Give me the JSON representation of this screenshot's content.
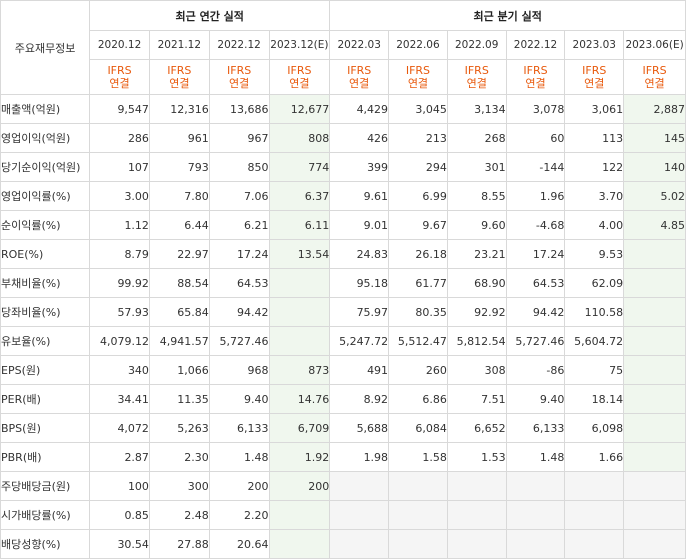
{
  "header": {
    "row_label": "주요재무정보",
    "annual_title": "최근 연간 실적",
    "quarter_title": "최근 분기 실적",
    "periods": [
      "2020.12",
      "2021.12",
      "2022.12",
      "2023.12(E)",
      "2022.03",
      "2022.06",
      "2022.09",
      "2022.12",
      "2023.03",
      "2023.06(E)"
    ],
    "basis": "IFRS",
    "basis_sub": "연결"
  },
  "rows": [
    {
      "label": "매출액(억원)",
      "values": [
        "9,547",
        "12,316",
        "13,686",
        "12,677",
        "4,429",
        "3,045",
        "3,134",
        "3,078",
        "3,061",
        "2,887"
      ],
      "neg": []
    },
    {
      "label": "영업이익(억원)",
      "values": [
        "286",
        "961",
        "967",
        "808",
        "426",
        "213",
        "268",
        "60",
        "113",
        "145"
      ],
      "neg": []
    },
    {
      "label": "당기순이익(억원)",
      "values": [
        "107",
        "793",
        "850",
        "774",
        "399",
        "294",
        "301",
        "-144",
        "122",
        "140"
      ],
      "neg": [
        7
      ]
    },
    {
      "label": "영업이익률(%)",
      "values": [
        "3.00",
        "7.80",
        "7.06",
        "6.37",
        "9.61",
        "6.99",
        "8.55",
        "1.96",
        "3.70",
        "5.02"
      ],
      "neg": []
    },
    {
      "label": "순이익률(%)",
      "values": [
        "1.12",
        "6.44",
        "6.21",
        "6.11",
        "9.01",
        "9.67",
        "9.60",
        "-4.68",
        "4.00",
        "4.85"
      ],
      "neg": [
        7
      ]
    },
    {
      "label": "ROE(%)",
      "values": [
        "8.79",
        "22.97",
        "17.24",
        "13.54",
        "24.83",
        "26.18",
        "23.21",
        "17.24",
        "9.53",
        ""
      ],
      "neg": []
    },
    {
      "label": "부채비율(%)",
      "values": [
        "99.92",
        "88.54",
        "64.53",
        "",
        "95.18",
        "61.77",
        "68.90",
        "64.53",
        "62.09",
        ""
      ],
      "neg": []
    },
    {
      "label": "당좌비율(%)",
      "values": [
        "57.93",
        "65.84",
        "94.42",
        "",
        "75.97",
        "80.35",
        "92.92",
        "94.42",
        "110.58",
        ""
      ],
      "neg": []
    },
    {
      "label": "유보율(%)",
      "values": [
        "4,079.12",
        "4,941.57",
        "5,727.46",
        "",
        "5,247.72",
        "5,512.47",
        "5,812.54",
        "5,727.46",
        "5,604.72",
        ""
      ],
      "neg": []
    },
    {
      "label": "EPS(원)",
      "values": [
        "340",
        "1,066",
        "968",
        "873",
        "491",
        "260",
        "308",
        "-86",
        "75",
        ""
      ],
      "neg": [
        7
      ]
    },
    {
      "label": "PER(배)",
      "values": [
        "34.41",
        "11.35",
        "9.40",
        "14.76",
        "8.92",
        "6.86",
        "7.51",
        "9.40",
        "18.14",
        ""
      ],
      "neg": []
    },
    {
      "label": "BPS(원)",
      "values": [
        "4,072",
        "5,263",
        "6,133",
        "6,709",
        "5,688",
        "6,084",
        "6,652",
        "6,133",
        "6,098",
        ""
      ],
      "neg": []
    },
    {
      "label": "PBR(배)",
      "values": [
        "2.87",
        "2.30",
        "1.48",
        "1.92",
        "1.98",
        "1.58",
        "1.53",
        "1.48",
        "1.66",
        ""
      ],
      "neg": []
    },
    {
      "label": "주당배당금(원)",
      "values": [
        "100",
        "300",
        "200",
        "200",
        "",
        "",
        "",
        "",
        "",
        ""
      ],
      "neg": [],
      "gray_quarters": true
    },
    {
      "label": "시가배당률(%)",
      "values": [
        "0.85",
        "2.48",
        "2.20",
        "",
        "",
        "",
        "",
        "",
        "",
        ""
      ],
      "neg": [],
      "gray_quarters": true
    },
    {
      "label": "배당성향(%)",
      "values": [
        "30.54",
        "27.88",
        "20.64",
        "",
        "",
        "",
        "",
        "",
        "",
        ""
      ],
      "neg": [],
      "gray_quarters": true
    }
  ],
  "colors": {
    "ifrs": "#e8590c",
    "negative": "#e03131",
    "estimate_bg": "#f0f7ee",
    "empty_bg": "#f5f5f5"
  }
}
